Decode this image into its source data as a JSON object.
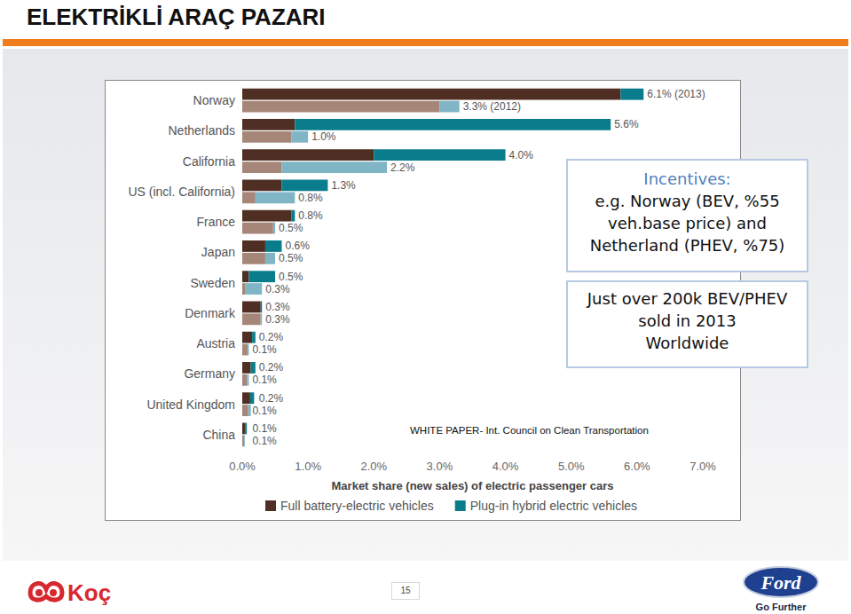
{
  "title": "ELEKTRİKLİ ARAÇ PAZARI",
  "chart_data": {
    "type": "bar",
    "orientation": "horizontal",
    "stacked": true,
    "data_labels": true,
    "grid": false,
    "legend": "bottom",
    "categories": [
      "Norway",
      "Netherlands",
      "California",
      "US (incl. California)",
      "France",
      "Japan",
      "Sweden",
      "Denmark",
      "Austria",
      "Germany",
      "United Kingdom",
      "China"
    ],
    "xlabel": "Market share (new sales) of electric passenger cars",
    "xlim": [
      0,
      7
    ],
    "xticks": [
      {
        "value": 0,
        "label": "0.0%"
      },
      {
        "value": 1,
        "label": "1.0%"
      },
      {
        "value": 2,
        "label": "2.0%"
      },
      {
        "value": 3,
        "label": "3.0%"
      },
      {
        "value": 4,
        "label": "4.0%"
      },
      {
        "value": 5,
        "label": "5.0%"
      },
      {
        "value": 6,
        "label": "6.0%"
      },
      {
        "value": 7,
        "label": "7.0%"
      }
    ],
    "periods": [
      {
        "series": [
          {
            "name": "Full battery-electric vehicles",
            "color": "#4f2f24",
            "values": [
              5.75,
              0.8,
              2.0,
              0.6,
              0.75,
              0.35,
              0.1,
              0.28,
              0.15,
              0.13,
              0.12,
              0.05
            ]
          },
          {
            "name": "Plug-in hybrid electric vehicles",
            "color": "#0a7d8c",
            "values": [
              0.35,
              4.8,
              2.0,
              0.7,
              0.05,
              0.25,
              0.4,
              0.02,
              0.05,
              0.07,
              0.06,
              0.02
            ]
          }
        ],
        "totals": [
          6.1,
          5.6,
          4.0,
          1.3,
          0.8,
          0.6,
          0.5,
          0.3,
          0.2,
          0.2,
          0.2,
          0.1
        ],
        "total_labels": [
          "6.1% (2013)",
          "5.6%",
          "4.0%",
          "1.3%",
          "0.8%",
          "0.6%",
          "0.5%",
          "0.3%",
          "0.2%",
          "0.2%",
          "0.2%",
          "0.1%"
        ]
      },
      {
        "series": [
          {
            "name": "Full battery-electric vehicles",
            "color": "#a58679",
            "values": [
              3.0,
              0.75,
              0.6,
              0.2,
              0.47,
              0.35,
              0.05,
              0.28,
              0.08,
              0.07,
              0.09,
              0.03
            ]
          },
          {
            "name": "Plug-in hybrid electric vehicles",
            "color": "#80b5c6",
            "values": [
              0.3,
              0.25,
              1.6,
              0.6,
              0.03,
              0.15,
              0.25,
              0.02,
              0.02,
              0.03,
              0.04,
              0.01
            ]
          }
        ],
        "totals": [
          3.3,
          1.0,
          2.2,
          0.8,
          0.5,
          0.5,
          0.3,
          0.3,
          0.1,
          0.1,
          0.1,
          0.1
        ],
        "total_labels": [
          "3.3% (2012)",
          "1.0%",
          "2.2%",
          "0.8%",
          "0.5%",
          "0.5%",
          "0.3%",
          "0.3%",
          "0.1%",
          "0.1%",
          "0.1%",
          "0.1%"
        ]
      }
    ]
  },
  "notes": [
    {
      "heading": "Incentives:",
      "lines": [
        "e.g. Norway (BEV, %55",
        "veh.base price) and",
        "Netherland (PHEV, %75)"
      ]
    },
    {
      "lines": [
        "Just over 200k BEV/PHEV",
        "sold in 2013",
        "Worldwide"
      ]
    }
  ],
  "source": "WHITE PAPER- Int. Council on Clean Transportation",
  "footer": {
    "left_logo": "Koç",
    "page_number": 15,
    "right_logo": "Ford",
    "tagline": "Go Further"
  }
}
